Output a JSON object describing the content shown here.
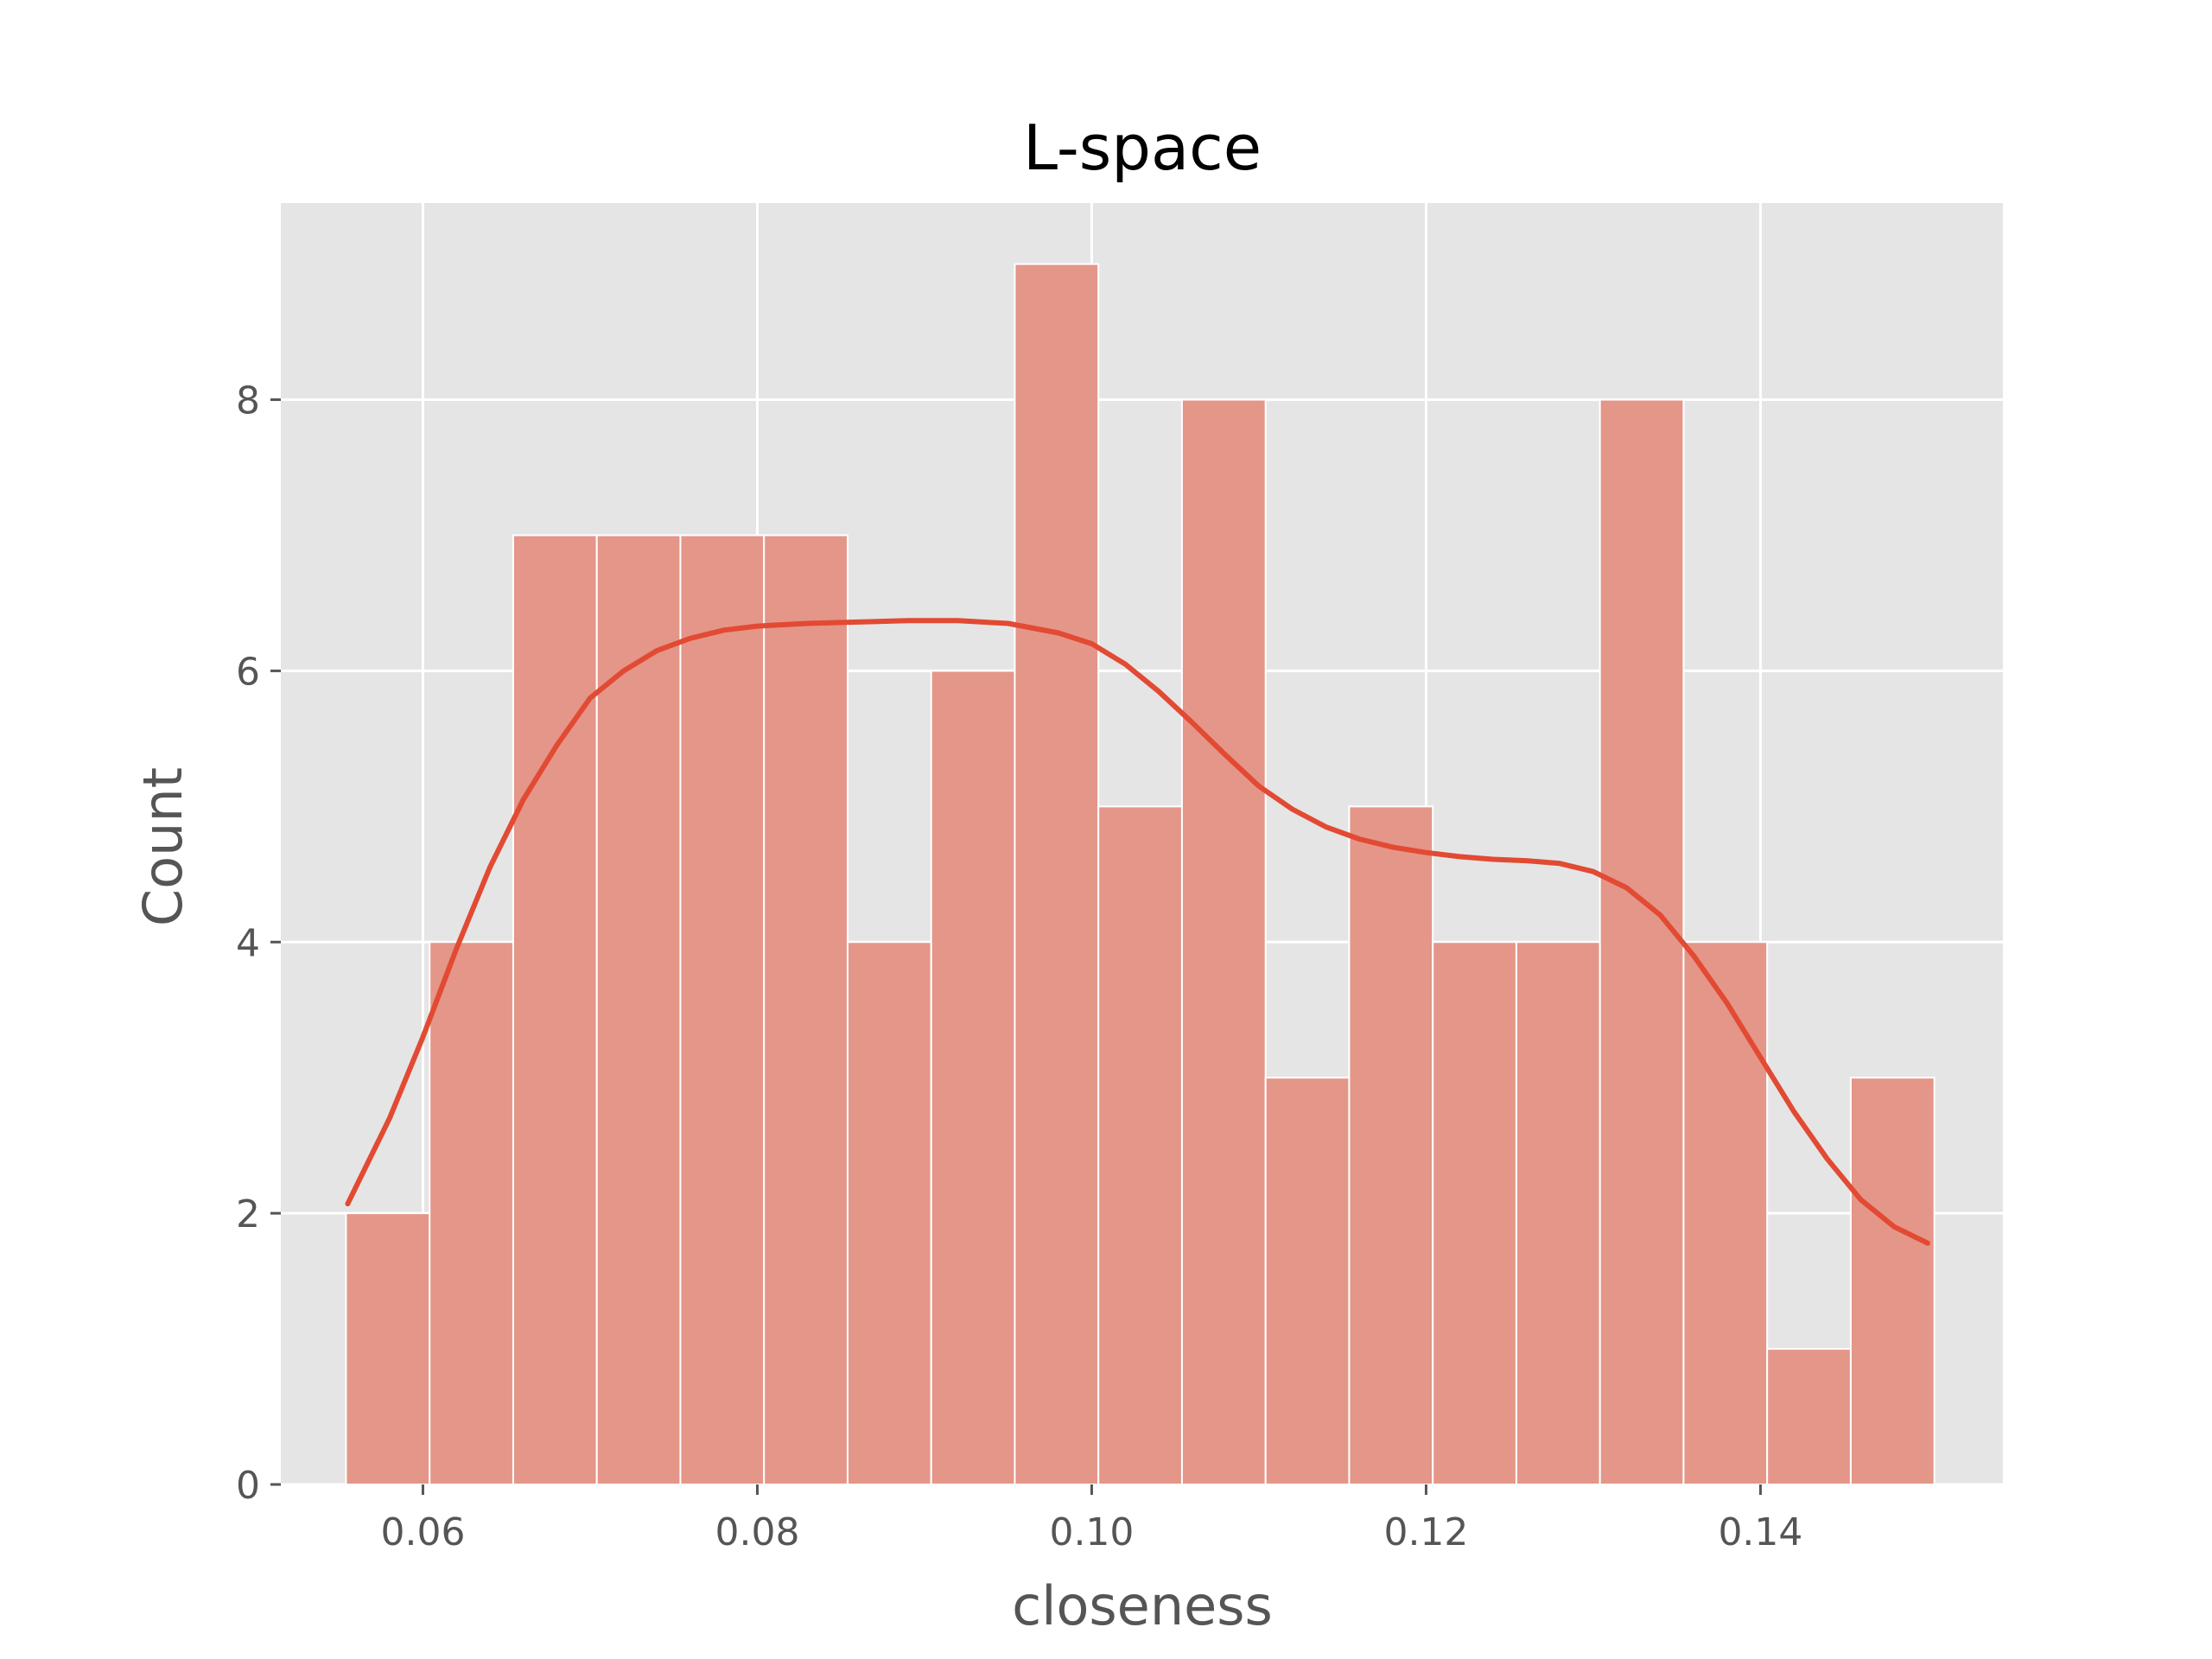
{
  "chart_data": {
    "type": "bar",
    "title": "L-space",
    "xlabel": "closeness",
    "ylabel": "Count",
    "xlim": [
      0.0515,
      0.1545
    ],
    "ylim": [
      0,
      9.45
    ],
    "x_ticks": [
      0.06,
      0.08,
      0.1,
      0.12,
      0.14
    ],
    "x_tick_labels": [
      "0.06",
      "0.08",
      "0.10",
      "0.12",
      "0.14"
    ],
    "y_ticks": [
      0,
      2,
      4,
      6,
      8
    ],
    "y_tick_labels": [
      "0",
      "2",
      "4",
      "6",
      "8"
    ],
    "grid": true,
    "bin_start": 0.0554,
    "bin_width": 0.005,
    "values": [
      2,
      4,
      7,
      7,
      7,
      7,
      4,
      6,
      9,
      5,
      8,
      3,
      5,
      4,
      4,
      8,
      4,
      1,
      3
    ],
    "kde_curve": {
      "x": [
        0.0555,
        0.058,
        0.06,
        0.062,
        0.064,
        0.066,
        0.068,
        0.07,
        0.072,
        0.074,
        0.076,
        0.078,
        0.08,
        0.083,
        0.086,
        0.089,
        0.092,
        0.095,
        0.098,
        0.1,
        0.102,
        0.104,
        0.106,
        0.108,
        0.11,
        0.112,
        0.114,
        0.116,
        0.118,
        0.12,
        0.122,
        0.124,
        0.126,
        0.128,
        0.13,
        0.132,
        0.134,
        0.136,
        0.138,
        0.14,
        0.142,
        0.144,
        0.146,
        0.148,
        0.15
      ],
      "y": [
        2.07,
        2.7,
        3.3,
        3.95,
        4.55,
        5.05,
        5.45,
        5.8,
        6.0,
        6.15,
        6.24,
        6.3,
        6.33,
        6.35,
        6.36,
        6.37,
        6.37,
        6.35,
        6.28,
        6.2,
        6.05,
        5.85,
        5.62,
        5.38,
        5.15,
        4.98,
        4.85,
        4.76,
        4.7,
        4.66,
        4.63,
        4.61,
        4.6,
        4.58,
        4.52,
        4.4,
        4.2,
        3.9,
        3.55,
        3.15,
        2.75,
        2.4,
        2.1,
        1.9,
        1.78
      ]
    },
    "colors": {
      "bar_fill": "#e49689",
      "bar_edge": "#ffffff",
      "kde_line": "#e24a33",
      "plot_background": "#e5e5e5",
      "grid": "#ffffff"
    }
  }
}
